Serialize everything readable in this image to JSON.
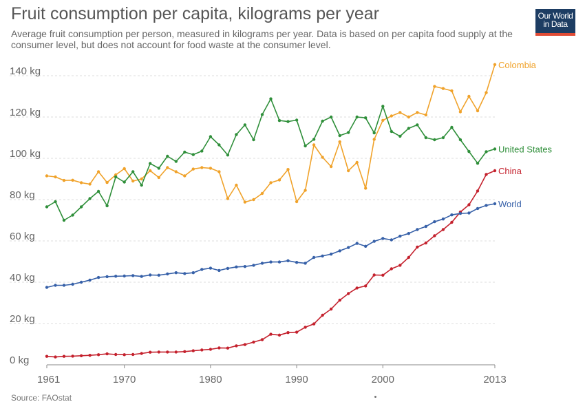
{
  "header": {
    "title": "Fruit consumption per capita, kilograms per year",
    "subtitle": "Average fruit consumption per person, measured in kilograms per year. Data is based on per capita food supply at the consumer level, but does not account for food waste at the consumer level."
  },
  "logo": {
    "line1": "Our World",
    "line2": "in Data",
    "bg_color": "#1d3d63",
    "accent_color": "#e04b35"
  },
  "footer": {
    "source": "Source: FAOstat"
  },
  "chart_data": {
    "type": "line",
    "title": "Fruit consumption per capita, kilograms per year",
    "xlabel": "",
    "ylabel": "",
    "xlim": [
      1961,
      2013
    ],
    "ylim": [
      0,
      140
    ],
    "x_ticks": [
      1961,
      1970,
      1980,
      1990,
      2000,
      2013
    ],
    "y_ticks": [
      0,
      20,
      40,
      60,
      80,
      100,
      120,
      140
    ],
    "y_tick_labels": [
      "0 kg",
      "20 kg",
      "40 kg",
      "60 kg",
      "80 kg",
      "100 kg",
      "120 kg",
      "140 kg"
    ],
    "grid": "horizontal-dashed",
    "legend": "line-end labels",
    "x": [
      1961,
      1962,
      1963,
      1964,
      1965,
      1966,
      1967,
      1968,
      1969,
      1970,
      1971,
      1972,
      1973,
      1974,
      1975,
      1976,
      1977,
      1978,
      1979,
      1980,
      1981,
      1982,
      1983,
      1984,
      1985,
      1986,
      1987,
      1988,
      1989,
      1990,
      1991,
      1992,
      1993,
      1994,
      1995,
      1996,
      1997,
      1998,
      1999,
      2000,
      2001,
      2002,
      2003,
      2004,
      2005,
      2006,
      2007,
      2008,
      2009,
      2010,
      2011,
      2012,
      2013
    ],
    "series": [
      {
        "name": "Colombia",
        "color": "#f0a22a",
        "values": [
          91.5,
          91,
          89.3,
          89.4,
          88.2,
          87.5,
          93.5,
          88.3,
          92,
          95,
          89,
          90,
          94,
          90.7,
          95.5,
          93.5,
          91.5,
          94.8,
          95.5,
          95.2,
          93.5,
          80.5,
          87,
          78.8,
          80,
          83,
          88.2,
          89.5,
          94.6,
          79,
          84.5,
          106.5,
          100.5,
          96,
          108,
          94,
          98,
          85.5,
          109.2,
          118.4,
          120.5,
          122.2,
          120,
          122.2,
          121,
          134.8,
          133.8,
          132.7,
          122.5,
          130,
          123,
          131.8,
          145.4
        ]
      },
      {
        "name": "United States",
        "color": "#2f8f3a",
        "values": [
          76.5,
          79,
          70,
          72.5,
          76.5,
          80.5,
          84,
          77,
          91,
          88.5,
          93.5,
          87,
          97.5,
          95.2,
          101,
          98.5,
          103,
          101.8,
          103.5,
          110.5,
          106.5,
          101.6,
          111.5,
          116.2,
          109,
          121.2,
          128.8,
          118.3,
          117.8,
          118.5,
          106,
          109.2,
          118,
          120,
          111,
          112.5,
          120,
          119.6,
          112.3,
          125.2,
          113,
          110.7,
          114.5,
          116.2,
          110,
          109,
          110,
          115,
          109,
          103.3,
          97.6,
          103.2,
          104.5
        ]
      },
      {
        "name": "China",
        "color": "#c4212d",
        "values": [
          4.1,
          3.8,
          4.1,
          4.2,
          4.4,
          4.6,
          4.9,
          5.3,
          5,
          4.9,
          5,
          5.5,
          6.1,
          6.2,
          6.2,
          6.2,
          6.4,
          6.8,
          7.2,
          7.5,
          8.2,
          8.1,
          9.2,
          9.8,
          11,
          12.2,
          14.8,
          14.4,
          15.6,
          15.8,
          18.2,
          19.8,
          24,
          27,
          31.3,
          34.5,
          37.2,
          38.2,
          43.5,
          43.4,
          46.5,
          48.2,
          52,
          57,
          59,
          62.5,
          65.5,
          69,
          74,
          77.5,
          84.2,
          92.2,
          94
        ]
      },
      {
        "name": "World",
        "color": "#3660a8",
        "values": [
          37.5,
          38.5,
          38.5,
          39,
          40,
          41,
          42.3,
          42.7,
          42.9,
          43,
          43.2,
          42.8,
          43.5,
          43.4,
          44,
          44.6,
          44.2,
          44.6,
          46.2,
          46.8,
          45.7,
          46.7,
          47.4,
          47.6,
          48.2,
          49.2,
          49.8,
          49.8,
          50.4,
          49.6,
          49.2,
          52,
          52.7,
          53.6,
          55.2,
          56.8,
          58.8,
          57.4,
          59.8,
          61.2,
          60.5,
          62.3,
          63.6,
          65.5,
          67,
          69.3,
          70.6,
          72.6,
          73.3,
          73.5,
          75.7,
          77.2,
          78
        ]
      }
    ]
  }
}
